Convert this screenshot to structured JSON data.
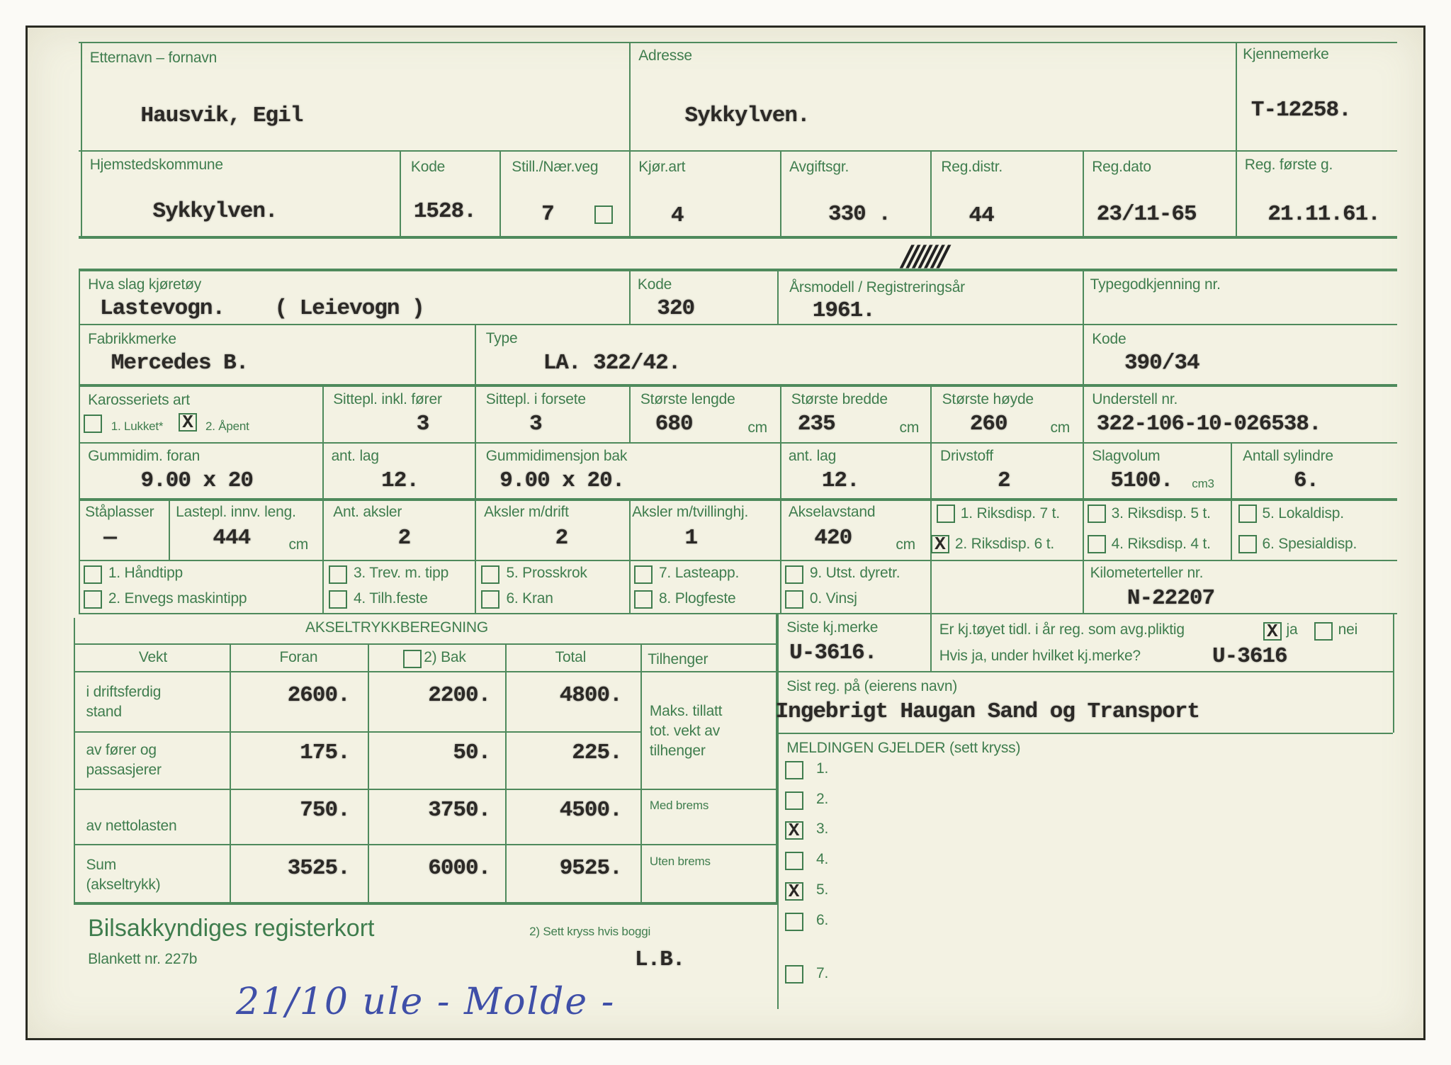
{
  "owner": {
    "name_label": "Etternavn – fornavn",
    "name": "Hausvik, Egil",
    "address_label": "Adresse",
    "address": "Sykkylven.",
    "plate_label": "Kjennemerke",
    "plate": "T-12258."
  },
  "registration": {
    "municipality_label": "Hjemstedskommune",
    "municipality": "Sykkylven.",
    "kode_label": "Kode",
    "kode": "1528.",
    "still_label": "Still./Nær.veg",
    "still": "7",
    "still_checked": false,
    "kjorart_label": "Kjør.art",
    "kjorart": "4",
    "avgift_label": "Avgiftsgr.",
    "avgift": "330 .",
    "regdistr_label": "Reg.distr.",
    "regdistr": "44",
    "regdato_label": "Reg.dato",
    "regdato": "23/11-65",
    "forste_label": "Reg. første g.",
    "forste": "21.11.61."
  },
  "vehicle": {
    "type_label": "Hva slag kjøretøy",
    "type": "Lastevogn.    ( Leievogn )",
    "kode_label": "Kode",
    "kode": "320",
    "year_label": "Årsmodell / Registreringsår",
    "year": "1961.",
    "strike_marks": "///////",
    "approval_label": "Typegodkjenning nr.",
    "make_label": "Fabrikkmerke",
    "make": "Mercedes B.",
    "model_label": "Type",
    "model": "LA. 322/42.",
    "kode2_label": "Kode",
    "kode2": "390/34",
    "body_label": "Karosseriets art",
    "body_options": [
      {
        "label": "1. Lukket*",
        "checked": false
      },
      {
        "label": "2. Åpent",
        "checked": true
      }
    ],
    "seats_label": "Sittepl. inkl. fører",
    "seats": "3",
    "front_seats_label": "Sittepl. i forsete",
    "front_seats": "3",
    "length_label": "Største lengde",
    "length": "680",
    "width_label": "Største bredde",
    "width": "235",
    "height_label": "Største høyde",
    "height": "260",
    "unit_cm": "cm",
    "chassis_label": "Understell nr.",
    "chassis": "322-106-10-026538.",
    "tire_front_label": "Gummidim. foran",
    "tire_front": "9.00 x 20",
    "plies_front_label": "ant. lag",
    "plies_front": "12.",
    "tire_rear_label": "Gummidimensjon bak",
    "tire_rear": "9.00 x 20.",
    "plies_rear_label": "ant. lag",
    "plies_rear": "12.",
    "fuel_label": "Drivstoff",
    "fuel": "2",
    "displacement_label": "Slagvolum",
    "displacement": "5100.",
    "unit_cm3": "cm3",
    "cylinders_label": "Antall sylindre",
    "cylinders": "6.",
    "standing_label": "Ståplasser",
    "standing": "—",
    "cargo_length_label": "Lastepl. innv. leng.",
    "cargo_length": "444",
    "axles_label": "Ant. aksler",
    "axles": "2",
    "driven_axles_label": "Aksler m/drift",
    "driven_axles": "2",
    "twin_axles_label": "Aksler m/tvillinghj.",
    "twin_axles": "1",
    "wheelbase_label": "Akselavstand",
    "wheelbase": "420",
    "dispensation": [
      {
        "label": "1. Riksdisp. 7 t.",
        "checked": false
      },
      {
        "label": "2. Riksdisp. 6 t.",
        "checked": true
      },
      {
        "label": "3. Riksdisp. 5 t.",
        "checked": false
      },
      {
        "label": "4. Riksdisp. 4 t.",
        "checked": false
      },
      {
        "label": "5. Lokaldisp.",
        "checked": false
      },
      {
        "label": "6. Spesialdisp.",
        "checked": false
      }
    ],
    "equipment": [
      {
        "label": "1. Håndtipp",
        "checked": false
      },
      {
        "label": "2. Envegs maskintipp",
        "checked": false
      },
      {
        "label": "3. Trev. m. tipp",
        "checked": false
      },
      {
        "label": "4. Tilh.feste",
        "checked": false
      },
      {
        "label": "5. Prosskrok",
        "checked": false
      },
      {
        "label": "6. Kran",
        "checked": false
      },
      {
        "label": "7. Lasteapp.",
        "checked": false
      },
      {
        "label": "8. Plogfeste",
        "checked": false
      },
      {
        "label": "9. Utst. dyretr.",
        "checked": false
      },
      {
        "label": "0. Vinsj",
        "checked": false
      }
    ],
    "odometer_label": "Kilometerteller nr.",
    "odometer": "N-22207"
  },
  "axle_load": {
    "title": "AKSELTRYKKBEREGNING",
    "headers": {
      "weight": "Vekt",
      "front": "Foran",
      "rear": "2) Bak",
      "total": "Total",
      "trailer": "Tilhenger"
    },
    "bogie_checked": false,
    "rows": [
      {
        "label": "i driftsferdig\nstand",
        "front": "2600.",
        "rear": "2200.",
        "total": "4800."
      },
      {
        "label": "av fører og\npassasjerer",
        "front": "175.",
        "rear": "50.",
        "total": "225."
      },
      {
        "label": "av nettolasten",
        "front": "750.",
        "rear": "3750.",
        "total": "4500."
      },
      {
        "label": "Sum\n(akseltrykk)",
        "front": "3525.",
        "rear": "6000.",
        "total": "9525."
      }
    ],
    "trailer_max_label": "Maks. tillatt\ntot. vekt av\ntilhenger",
    "with_brakes_label": "Med brems",
    "without_brakes_label": "Uten brems"
  },
  "history": {
    "last_plate_label": "Siste kj.merke",
    "last_plate": "U-3616.",
    "question": "Er kj.tøyet tidl. i år reg. som avg.pliktig",
    "yes_label": "ja",
    "yes_checked": true,
    "no_label": "nei",
    "no_checked": false,
    "which_plate_label": "Hvis ja, under hvilket kj.merke?",
    "which_plate": "U-3616",
    "last_owner_label": "Sist reg. på (eierens navn)",
    "last_owner": "Ingebrigt Haugan Sand og Transport"
  },
  "notice": {
    "label": "MELDINGEN GJELDER (sett kryss)",
    "options": [
      {
        "label": "1.",
        "checked": false
      },
      {
        "label": "2.",
        "checked": false
      },
      {
        "label": "3.",
        "checked": true
      },
      {
        "label": "4.",
        "checked": false
      },
      {
        "label": "5.",
        "checked": true
      },
      {
        "label": "6.",
        "checked": false
      },
      {
        "label": "7.",
        "checked": false
      }
    ]
  },
  "footer": {
    "title": "Bilsakkyndiges registerkort",
    "form_number": "Blankett nr. 227b",
    "footnote": "2) Sett kryss hvis boggi",
    "initials": "L.B.",
    "handwritten_note": "21/10 ule - Molde -"
  },
  "colors": {
    "form_green": "#3f7d4e",
    "paper": "#f3f2e3",
    "typewriter": "#2b2926",
    "ink_blue": "#3f4fa8"
  }
}
